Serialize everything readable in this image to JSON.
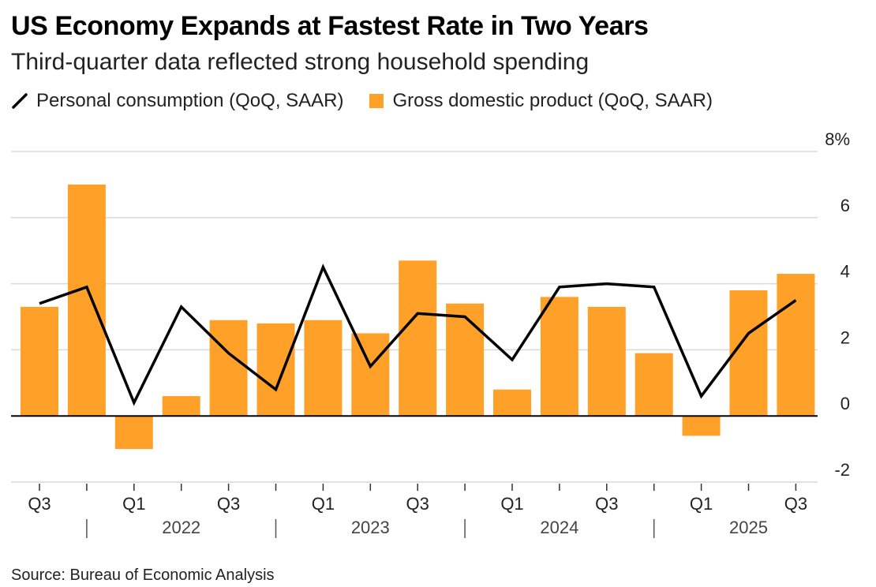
{
  "header": {
    "title": "US Economy Expands at Fastest Rate in Two Years",
    "subtitle": "Third-quarter data reflected strong household spending"
  },
  "legend": {
    "line_label": "Personal consumption (QoQ, SAAR)",
    "bar_label": "Gross domestic product (QoQ, SAAR)"
  },
  "source": "Source: Bureau of Economic Analysis",
  "colors": {
    "bar": "#FFA028",
    "line": "#000000",
    "grid": "#d9d9d9",
    "zero": "#000000"
  },
  "chart_data": {
    "type": "bar",
    "title": "US Economy Expands at Fastest Rate in Two Years",
    "subtitle": "Third-quarter data reflected strong household spending",
    "xlabel": "",
    "ylabel": "",
    "ylim": [
      -2,
      8
    ],
    "yticks": [
      8,
      6,
      4,
      2,
      0,
      -2
    ],
    "ytick_labels": [
      "8%",
      "6",
      "4",
      "2",
      "0",
      "-2"
    ],
    "categories": [
      "Q3 2021",
      "Q4 2021",
      "Q1 2022",
      "Q2 2022",
      "Q3 2022",
      "Q4 2022",
      "Q1 2023",
      "Q2 2023",
      "Q3 2023",
      "Q4 2023",
      "Q1 2024",
      "Q2 2024",
      "Q3 2024",
      "Q4 2024",
      "Q1 2025",
      "Q2 2025",
      "Q3 2025"
    ],
    "quarter_labels": [
      "Q3",
      "",
      "Q1",
      "",
      "Q3",
      "",
      "Q1",
      "",
      "Q3",
      "",
      "Q1",
      "",
      "Q3",
      "",
      "Q1",
      "",
      "Q3"
    ],
    "year_labels": [
      "2022",
      "2023",
      "2024",
      "2025"
    ],
    "series": [
      {
        "name": "Gross domestic product (QoQ, SAAR)",
        "type": "bar",
        "values": [
          3.3,
          7.0,
          -1.0,
          0.6,
          2.9,
          2.8,
          2.9,
          2.5,
          4.7,
          3.4,
          0.8,
          3.6,
          3.3,
          1.9,
          -0.6,
          3.8,
          4.3
        ]
      },
      {
        "name": "Personal consumption (QoQ, SAAR)",
        "type": "line",
        "values": [
          3.4,
          3.9,
          0.4,
          3.3,
          1.9,
          0.8,
          4.5,
          1.5,
          3.1,
          3.0,
          1.7,
          3.9,
          4.0,
          3.9,
          0.6,
          2.5,
          3.5
        ]
      }
    ],
    "legend_position": "top-left",
    "grid": true
  }
}
